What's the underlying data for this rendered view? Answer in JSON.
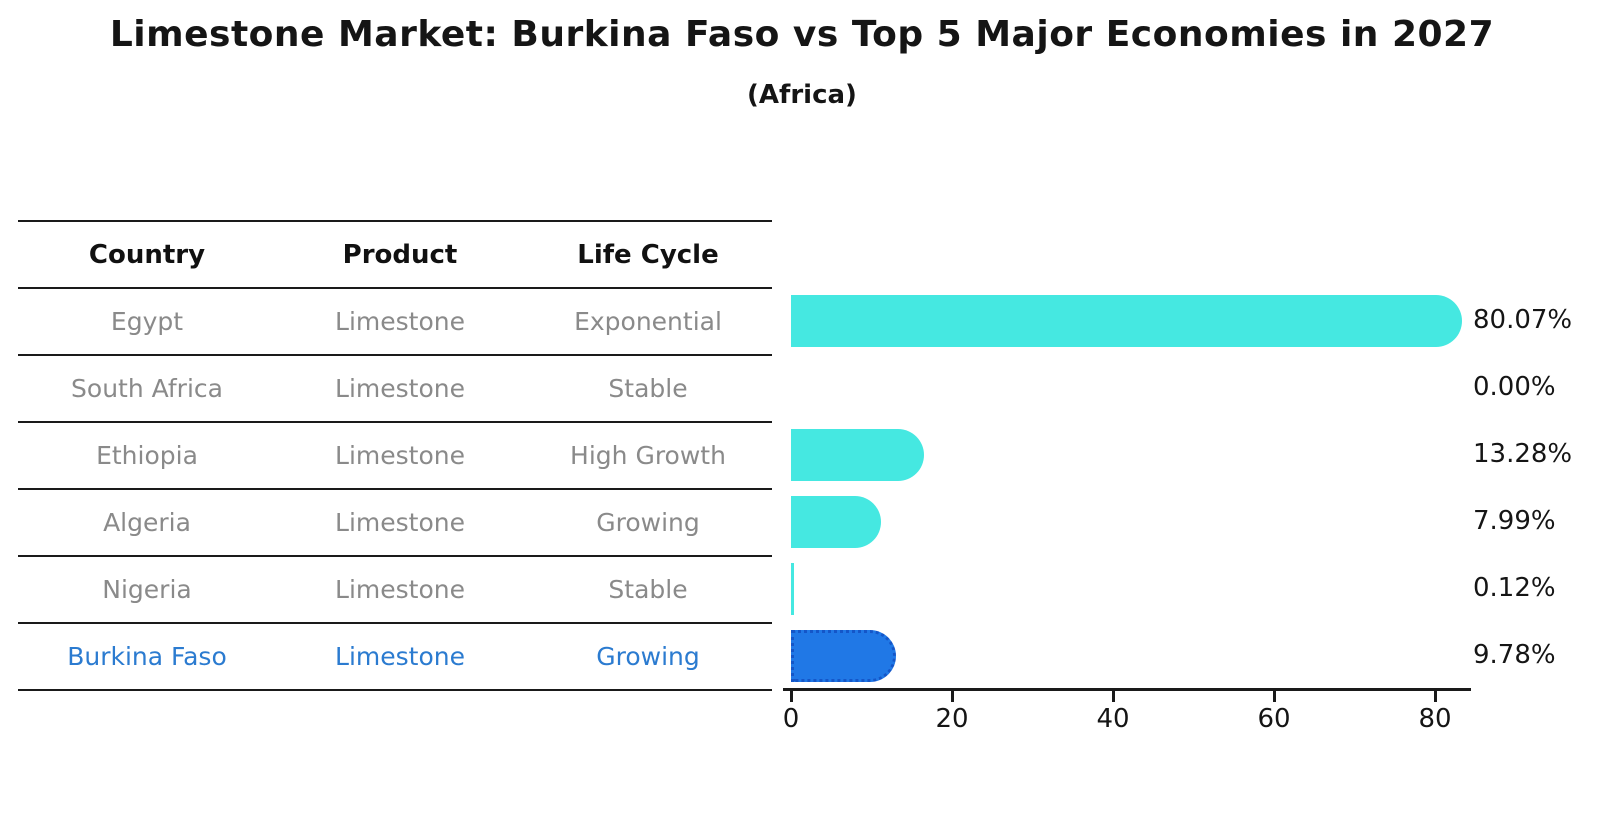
{
  "title": "Limestone Market: Burkina Faso vs Top 5 Major Economies in 2027",
  "subtitle": "(Africa)",
  "table": {
    "headers": [
      "Country",
      "Product",
      "Life Cycle"
    ],
    "rows": [
      {
        "country": "Egypt",
        "product": "Limestone",
        "life_cycle": "Exponential",
        "highlight": false
      },
      {
        "country": "South Africa",
        "product": "Limestone",
        "life_cycle": "Stable",
        "highlight": false
      },
      {
        "country": "Ethiopia",
        "product": "Limestone",
        "life_cycle": "High Growth",
        "highlight": false
      },
      {
        "country": "Algeria",
        "product": "Limestone",
        "life_cycle": "Growing",
        "highlight": false
      },
      {
        "country": "Nigeria",
        "product": "Limestone",
        "life_cycle": "Stable",
        "highlight": false
      },
      {
        "country": "Burkina Faso",
        "product": "Limestone",
        "life_cycle": "Growing",
        "highlight": true
      }
    ]
  },
  "chart_data": {
    "type": "bar",
    "orientation": "horizontal",
    "title": "Limestone Market: Burkina Faso vs Top 5 Major Economies in 2027",
    "subtitle": "(Africa)",
    "categories": [
      "Egypt",
      "South Africa",
      "Ethiopia",
      "Algeria",
      "Nigeria",
      "Burkina Faso"
    ],
    "values": [
      80.07,
      0.0,
      13.28,
      7.99,
      0.12,
      9.78
    ],
    "value_labels": [
      "80.07%",
      "0.00%",
      "13.28%",
      "7.99%",
      "0.12%",
      "9.78%"
    ],
    "xlabel": "",
    "ylabel": "",
    "xlim": [
      0,
      84
    ],
    "xticks": [
      0,
      20,
      40,
      60,
      80
    ],
    "grid": false,
    "legend": false,
    "highlight_index": 5
  },
  "colors": {
    "bar_default": "#45e8e1",
    "bar_highlight": "#2078e6",
    "bar_highlight_border": "#1456c8",
    "text_default": "#8a8a8a",
    "text_highlight": "#2b7bd0",
    "text_black": "#151515",
    "line": "#1a1a1a",
    "background": "#ffffff"
  }
}
